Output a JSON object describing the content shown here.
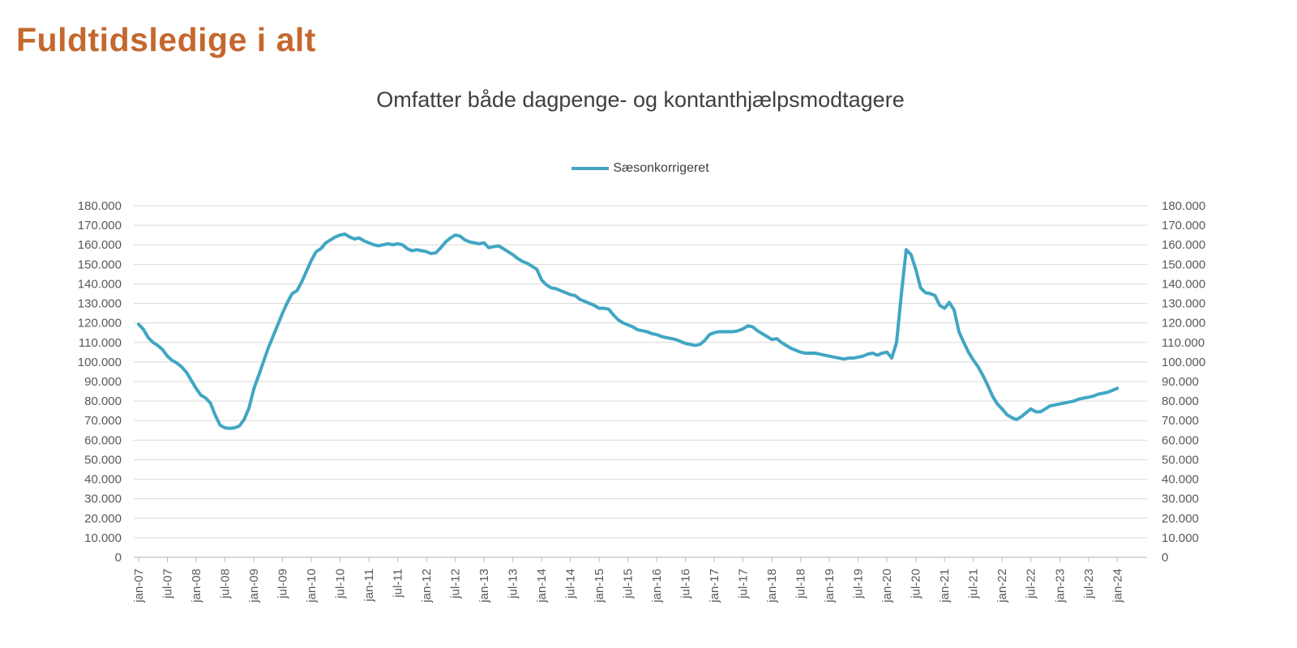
{
  "page": {
    "title": "Fuldtidsledige i alt",
    "title_color": "#C4682E"
  },
  "chart_data": {
    "type": "line",
    "title": "Omfatter både dagpenge- og kontanthjælpsmodtagere",
    "title_color": "#3F3F3F",
    "legend_position": "top",
    "grid": true,
    "x_start": "jan-07",
    "x_interval": "month",
    "x_tick_every": 6,
    "x_tick_labels": [
      "jan-07",
      "jul-07",
      "jan-08",
      "jul-08",
      "jan-09",
      "jul-09",
      "jan-10",
      "jul-10",
      "jan-11",
      "jul-11",
      "jan-12",
      "jul-12",
      "jan-13",
      "jul-13",
      "jan-14",
      "jul-14",
      "jan-15",
      "jul-15",
      "jan-16",
      "jul-16",
      "jan-17",
      "jul-17",
      "jan-18",
      "jul-18",
      "jan-19",
      "jul-19",
      "jan-20",
      "jul-20",
      "jan-21",
      "jul-21",
      "jan-22",
      "jul-22",
      "jan-23",
      "jul-23",
      "jan-24"
    ],
    "ylim": [
      0,
      180000
    ],
    "y_tick_step": 10000,
    "y_tick_labels": [
      "0",
      "10.000",
      "20.000",
      "30.000",
      "40.000",
      "50.000",
      "60.000",
      "70.000",
      "80.000",
      "90.000",
      "100.000",
      "110.000",
      "120.000",
      "130.000",
      "140.000",
      "150.000",
      "160.000",
      "170.000",
      "180.000"
    ],
    "colors": {
      "gridline": "#D9D9D9",
      "axis": "#BFBFBF",
      "tick_text": "#595959"
    },
    "series": [
      {
        "name": "Sæsonkorrigeret",
        "color": "#41A6C3",
        "values": [
          119300,
          116700,
          112500,
          110000,
          108400,
          106300,
          103000,
          100800,
          99400,
          97400,
          94600,
          90500,
          86400,
          83000,
          81500,
          78800,
          72600,
          67600,
          66300,
          66000,
          66300,
          67200,
          70600,
          76300,
          86000,
          93000,
          100000,
          107000,
          113000,
          119000,
          125000,
          130500,
          135000,
          136500,
          141000,
          146500,
          152000,
          156500,
          158000,
          161000,
          162500,
          164000,
          165000,
          165500,
          164000,
          163000,
          163500,
          162000,
          161000,
          160000,
          159500,
          160000,
          160500,
          160000,
          160500,
          160000,
          158000,
          157000,
          157500,
          157000,
          156500,
          155500,
          156000,
          158500,
          161500,
          163500,
          165000,
          164500,
          162500,
          161500,
          161000,
          160500,
          161000,
          158500,
          159000,
          159500,
          158000,
          156500,
          155000,
          153000,
          151500,
          150500,
          149000,
          147500,
          142000,
          139500,
          138000,
          137500,
          136500,
          135500,
          134500,
          134000,
          132000,
          131000,
          130000,
          129000,
          127500,
          127500,
          127000,
          124000,
          121500,
          120000,
          119000,
          118000,
          116500,
          116000,
          115500,
          114500,
          114000,
          113000,
          112500,
          112000,
          111500,
          110500,
          109500,
          109000,
          108500,
          109000,
          111000,
          114000,
          115000,
          115500,
          115500,
          115500,
          115500,
          116000,
          117000,
          118500,
          118000,
          116000,
          114500,
          113000,
          111500,
          112000,
          110000,
          108500,
          107000,
          106000,
          105000,
          104500,
          104500,
          104500,
          104000,
          103500,
          103000,
          102500,
          102000,
          101500,
          102000,
          102000,
          102500,
          103000,
          104000,
          104500,
          103500,
          104500,
          105000,
          102000,
          110000,
          135000,
          157500,
          155000,
          147500,
          138000,
          135500,
          135000,
          134000,
          129000,
          127500,
          130500,
          126500,
          115500,
          110000,
          105000,
          101000,
          97500,
          93000,
          88000,
          82500,
          78500,
          76000,
          73000,
          71500,
          70500,
          72000,
          74000,
          76000,
          74500,
          74500,
          76000,
          77500,
          78000,
          78500,
          79000,
          79500,
          80000,
          81000,
          81500,
          82000,
          82500,
          83500,
          84000,
          84500,
          85500,
          86500
        ]
      }
    ]
  }
}
